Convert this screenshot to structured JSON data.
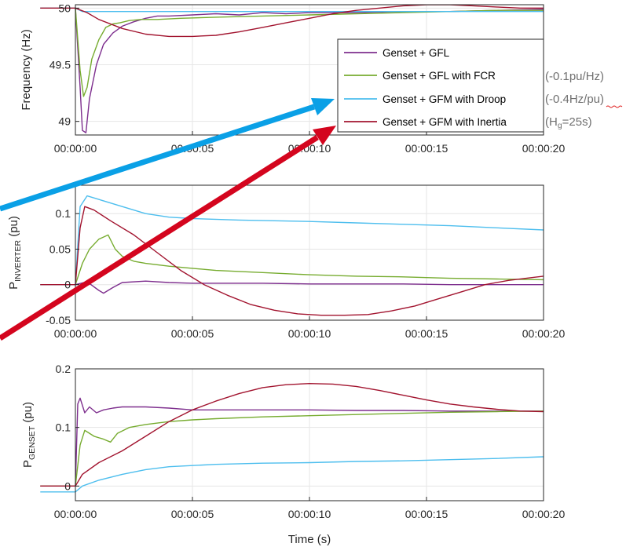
{
  "colors": {
    "gfl": "#7E2F8E",
    "gfl_fcr": "#77AC30",
    "gfm_droop": "#4DBEEE",
    "gfm_inertia": "#A2142F",
    "arrow_blue": "#0AA0E6",
    "arrow_red": "#D4051E"
  },
  "legend": {
    "items": [
      "Genset + GFL",
      "Genset + GFL with FCR",
      "Genset + GFM with Droop",
      "Genset + GFM with Inertia"
    ],
    "notes": [
      {
        "text": "(-0.1pu/Hz)"
      },
      {
        "text": "(-0.4Hz/pu)"
      },
      {
        "main": "(H",
        "sub": "g",
        "tail": "=25s)"
      }
    ],
    "placement": "inside-right of top panel"
  },
  "xlabel": "Time (s)",
  "chart_data": [
    {
      "type": "line",
      "ylabel": "Frequency (Hz)",
      "xlim": [
        0,
        20
      ],
      "ylim": [
        48.88,
        50.03
      ],
      "xticks": [
        0,
        5,
        10,
        15,
        20
      ],
      "xtick_labels": [
        "00:00:00",
        "00:00:05",
        "00:00:10",
        "00:00:15",
        "00:00:20"
      ],
      "yticks": [
        49,
        49.5,
        50
      ],
      "ytick_labels": [
        "49",
        "49.5",
        "50"
      ],
      "grid": true,
      "series": [
        {
          "name": "Genset + GFL",
          "color_key": "gfl",
          "x": [
            -1.5,
            0,
            0.2,
            0.3,
            0.45,
            0.6,
            0.9,
            1.2,
            1.6,
            2.0,
            2.5,
            3.0,
            3.5,
            4.0,
            5.0,
            6.0,
            7.0,
            8.0,
            9.0,
            10.0,
            12.0,
            14.0,
            16.0,
            18.0,
            20.0
          ],
          "y": [
            50.0,
            50.0,
            49.3,
            48.92,
            48.9,
            49.2,
            49.5,
            49.68,
            49.78,
            49.84,
            49.88,
            49.91,
            49.93,
            49.93,
            49.94,
            49.95,
            49.94,
            49.96,
            49.95,
            49.96,
            49.96,
            49.97,
            49.97,
            49.98,
            49.99
          ]
        },
        {
          "name": "Genset + GFL with FCR",
          "color_key": "gfl_fcr",
          "x": [
            -1.5,
            0,
            0.2,
            0.35,
            0.5,
            0.7,
            1.0,
            1.3,
            1.6,
            1.9,
            2.3,
            2.8,
            3.5,
            4.5,
            6,
            8,
            10,
            12,
            14,
            16,
            18,
            20
          ],
          "y": [
            50.0,
            50.0,
            49.45,
            49.22,
            49.3,
            49.55,
            49.72,
            49.83,
            49.86,
            49.87,
            49.89,
            49.9,
            49.9,
            49.91,
            49.92,
            49.93,
            49.94,
            49.95,
            49.96,
            49.97,
            49.98,
            49.98
          ]
        },
        {
          "name": "Genset + GFM with Droop",
          "color_key": "gfm_droop",
          "x": [
            -1.5,
            0,
            0.3,
            20
          ],
          "y": [
            50.0,
            50.0,
            49.97,
            49.97
          ]
        },
        {
          "name": "Genset + GFM with Inertia",
          "color_key": "gfm_inertia",
          "x": [
            -1.5,
            0,
            0.5,
            1,
            2,
            3,
            4,
            5,
            6,
            7,
            8,
            9,
            10,
            11,
            12,
            13,
            14,
            15,
            16,
            17,
            18,
            19,
            20
          ],
          "y": [
            50.0,
            50.0,
            49.96,
            49.9,
            49.82,
            49.77,
            49.75,
            49.75,
            49.76,
            49.79,
            49.83,
            49.87,
            49.91,
            49.95,
            49.98,
            50.0,
            50.02,
            50.03,
            50.03,
            50.02,
            50.01,
            50.0,
            50.0
          ]
        }
      ]
    },
    {
      "type": "line",
      "ylabel_main": "P",
      "ylabel_sub": "INVERTER",
      "ylabel_tail": " (pu)",
      "xlim": [
        0,
        20
      ],
      "ylim": [
        -0.05,
        0.14
      ],
      "xticks": [
        0,
        5,
        10,
        15,
        20
      ],
      "xtick_labels": [
        "00:00:00",
        "00:00:05",
        "00:00:10",
        "00:00:15",
        "00:00:20"
      ],
      "yticks": [
        -0.05,
        0,
        0.05,
        0.1
      ],
      "ytick_labels": [
        "-0.05",
        "0",
        "0.05",
        "0.1"
      ],
      "grid": true,
      "series": [
        {
          "name": "Genset + GFL",
          "color_key": "gfl",
          "x": [
            -1.5,
            0,
            0.5,
            1,
            1.2,
            1.6,
            2,
            3,
            4,
            5,
            6,
            8,
            10,
            12,
            14,
            16,
            18,
            20
          ],
          "y": [
            0.0,
            0.0,
            0.004,
            -0.008,
            -0.012,
            -0.004,
            0.003,
            0.005,
            0.003,
            0.002,
            0.002,
            0.002,
            0.001,
            0.001,
            0.001,
            0.0,
            0.0,
            0.0
          ]
        },
        {
          "name": "Genset + GFL with FCR",
          "color_key": "gfl_fcr",
          "x": [
            -1.5,
            0,
            0.3,
            0.6,
            1.0,
            1.4,
            1.7,
            2,
            2.5,
            3,
            4,
            5,
            6,
            8,
            10,
            12,
            14,
            16,
            18,
            20
          ],
          "y": [
            0.0,
            0.0,
            0.03,
            0.05,
            0.064,
            0.07,
            0.05,
            0.04,
            0.033,
            0.03,
            0.026,
            0.023,
            0.02,
            0.017,
            0.014,
            0.012,
            0.011,
            0.009,
            0.008,
            0.007
          ]
        },
        {
          "name": "Genset + GFM with Droop",
          "color_key": "gfm_droop",
          "x": [
            -1.5,
            0,
            0.2,
            0.5,
            1,
            2,
            3,
            4,
            5,
            7,
            10,
            12,
            14,
            16,
            18,
            20
          ],
          "y": [
            0.0,
            0.0,
            0.11,
            0.125,
            0.12,
            0.11,
            0.1,
            0.095,
            0.093,
            0.091,
            0.089,
            0.087,
            0.085,
            0.083,
            0.08,
            0.077
          ]
        },
        {
          "name": "Genset + GFM with Inertia",
          "color_key": "gfm_inertia",
          "x": [
            -1.5,
            0,
            0.2,
            0.4,
            0.8,
            1.5,
            2.5,
            3.5,
            4.5,
            5.5,
            6.5,
            7.5,
            8.5,
            9.5,
            10.5,
            11.5,
            12.5,
            13.5,
            14.5,
            15.5,
            16.5,
            17.5,
            18.5,
            19.5,
            20
          ],
          "y": [
            0.0,
            0.0,
            0.08,
            0.11,
            0.105,
            0.09,
            0.07,
            0.045,
            0.02,
            0.0,
            -0.015,
            -0.028,
            -0.036,
            -0.041,
            -0.043,
            -0.043,
            -0.042,
            -0.037,
            -0.03,
            -0.02,
            -0.01,
            0.0,
            0.006,
            0.01,
            0.012
          ]
        }
      ]
    },
    {
      "type": "line",
      "ylabel_main": "P",
      "ylabel_sub": "GENSET",
      "ylabel_tail": " (pu)",
      "xlim": [
        0,
        20
      ],
      "ylim": [
        -0.025,
        0.2
      ],
      "xticks": [
        0,
        5,
        10,
        15,
        20
      ],
      "xtick_labels": [
        "00:00:00",
        "00:00:05",
        "00:00:10",
        "00:00:15",
        "00:00:20"
      ],
      "yticks": [
        0,
        0.1,
        0.2
      ],
      "ytick_labels": [
        "0",
        "0.1",
        "0.2"
      ],
      "grid": true,
      "series": [
        {
          "name": "Genset + GFL",
          "color_key": "gfl",
          "x": [
            -1.5,
            0,
            0.1,
            0.2,
            0.4,
            0.6,
            0.9,
            1.2,
            1.6,
            2,
            3,
            4,
            5,
            6,
            8,
            10,
            12,
            14,
            16,
            18,
            20
          ],
          "y": [
            0.0,
            0.0,
            0.14,
            0.15,
            0.125,
            0.135,
            0.125,
            0.13,
            0.133,
            0.135,
            0.135,
            0.133,
            0.13,
            0.13,
            0.13,
            0.13,
            0.129,
            0.129,
            0.128,
            0.128,
            0.128
          ]
        },
        {
          "name": "Genset + GFL with FCR",
          "color_key": "gfl_fcr",
          "x": [
            -1.5,
            0,
            0.2,
            0.4,
            0.8,
            1.2,
            1.5,
            1.8,
            2.3,
            3,
            4,
            5,
            6,
            8,
            10,
            12,
            14,
            16,
            18,
            20
          ],
          "y": [
            0.0,
            0.0,
            0.07,
            0.095,
            0.085,
            0.08,
            0.075,
            0.09,
            0.1,
            0.105,
            0.11,
            0.113,
            0.115,
            0.118,
            0.12,
            0.122,
            0.124,
            0.126,
            0.127,
            0.128
          ]
        },
        {
          "name": "Genset + GFM with Droop",
          "color_key": "gfm_droop",
          "x": [
            -1.5,
            0,
            0.3,
            1,
            2,
            3,
            4,
            5,
            6,
            8,
            10,
            12,
            14,
            16,
            18,
            20
          ],
          "y": [
            -0.01,
            -0.01,
            0.0,
            0.01,
            0.02,
            0.028,
            0.033,
            0.035,
            0.037,
            0.039,
            0.04,
            0.042,
            0.043,
            0.045,
            0.047,
            0.05
          ]
        },
        {
          "name": "Genset + GFM with Inertia",
          "color_key": "gfm_inertia",
          "x": [
            -1.5,
            0,
            0.3,
            1,
            2,
            3,
            4,
            5,
            6,
            7,
            8,
            9,
            10,
            11,
            12,
            13,
            14,
            15,
            16,
            17,
            18,
            19,
            20
          ],
          "y": [
            0.0,
            0.0,
            0.02,
            0.04,
            0.06,
            0.085,
            0.11,
            0.13,
            0.145,
            0.158,
            0.168,
            0.173,
            0.175,
            0.174,
            0.17,
            0.163,
            0.155,
            0.147,
            0.14,
            0.135,
            0.131,
            0.128,
            0.127
          ]
        }
      ]
    }
  ]
}
